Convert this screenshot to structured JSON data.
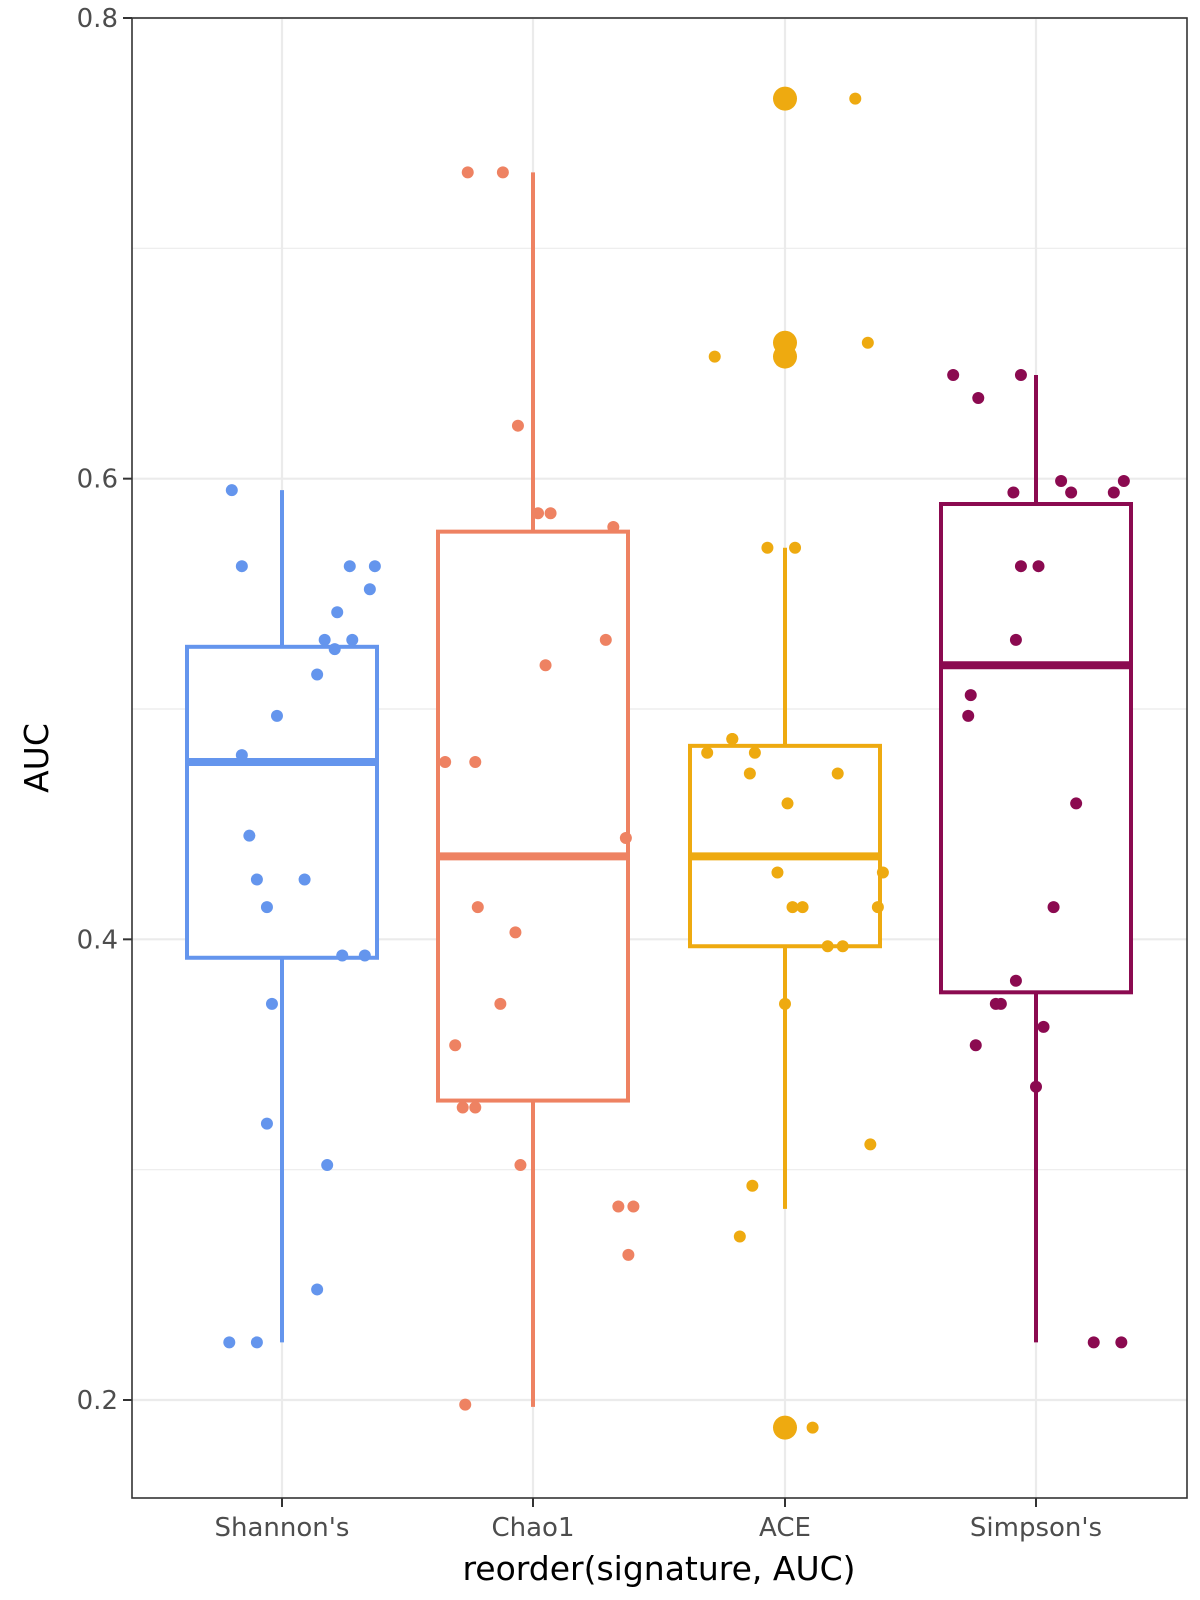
{
  "chart_data": {
    "type": "boxplot",
    "xlabel": "reorder(signature, AUC)",
    "ylabel": "AUC",
    "ylim": [
      0.155,
      0.8
    ],
    "yticks": [
      0.2,
      0.4,
      0.6,
      0.8
    ],
    "ytick_labels": [
      "0.2",
      "0.4",
      "0.6",
      "0.8"
    ],
    "grid": true,
    "categories": [
      "Shannon's",
      "Chao1",
      "ACE",
      "Simpson's"
    ],
    "colors": [
      "#6495ED",
      "#EE8262",
      "#EEAA10",
      "#8B0A50"
    ],
    "boxes": [
      {
        "name": "Shannon's",
        "whisker_low": 0.225,
        "q1": 0.392,
        "median": 0.477,
        "q3": 0.527,
        "whisker_high": 0.595,
        "outliers": []
      },
      {
        "name": "Chao1",
        "whisker_low": 0.197,
        "q1": 0.33,
        "median": 0.436,
        "q3": 0.577,
        "whisker_high": 0.733,
        "outliers": []
      },
      {
        "name": "ACE",
        "whisker_low": 0.283,
        "q1": 0.397,
        "median": 0.436,
        "q3": 0.484,
        "whisker_high": 0.57,
        "outliers": [
          0.765,
          0.659,
          0.653,
          0.188
        ]
      },
      {
        "name": "Simpson's",
        "whisker_low": 0.225,
        "q1": 0.377,
        "median": 0.519,
        "q3": 0.589,
        "whisker_high": 0.645,
        "outliers": []
      }
    ],
    "points": [
      [
        [
          -0.2,
          0.595
        ],
        [
          -0.16,
          0.562
        ],
        [
          0.27,
          0.562
        ],
        [
          0.37,
          0.562
        ],
        [
          0.35,
          0.552
        ],
        [
          0.22,
          0.542
        ],
        [
          0.17,
          0.53
        ],
        [
          0.28,
          0.53
        ],
        [
          0.21,
          0.526
        ],
        [
          0.14,
          0.515
        ],
        [
          -0.02,
          0.497
        ],
        [
          -0.16,
          0.48
        ],
        [
          -0.13,
          0.445
        ],
        [
          -0.1,
          0.426
        ],
        [
          0.09,
          0.426
        ],
        [
          -0.06,
          0.414
        ],
        [
          0.24,
          0.393
        ],
        [
          0.33,
          0.393
        ],
        [
          -0.04,
          0.372
        ],
        [
          -0.06,
          0.32
        ],
        [
          0.18,
          0.302
        ],
        [
          0.14,
          0.248
        ],
        [
          -0.21,
          0.225
        ],
        [
          -0.1,
          0.225
        ]
      ],
      [
        [
          -0.26,
          0.733
        ],
        [
          -0.12,
          0.733
        ],
        [
          -0.06,
          0.623
        ],
        [
          0.02,
          0.585
        ],
        [
          0.07,
          0.585
        ],
        [
          0.32,
          0.579
        ],
        [
          0.29,
          0.53
        ],
        [
          0.05,
          0.519
        ],
        [
          -0.35,
          0.477
        ],
        [
          -0.23,
          0.477
        ],
        [
          0.37,
          0.444
        ],
        [
          -0.22,
          0.414
        ],
        [
          -0.07,
          0.403
        ],
        [
          -0.13,
          0.372
        ],
        [
          -0.31,
          0.354
        ],
        [
          -0.28,
          0.327
        ],
        [
          -0.23,
          0.327
        ],
        [
          -0.05,
          0.302
        ],
        [
          0.34,
          0.284
        ],
        [
          0.4,
          0.284
        ],
        [
          0.38,
          0.263
        ],
        [
          -0.27,
          0.198
        ]
      ],
      [
        [
          0.28,
          0.765
        ],
        [
          0.33,
          0.659
        ],
        [
          -0.28,
          0.653
        ],
        [
          0.04,
          0.57
        ],
        [
          -0.07,
          0.57
        ],
        [
          -0.21,
          0.487
        ],
        [
          -0.21,
          0.487
        ],
        [
          -0.31,
          0.481
        ],
        [
          -0.12,
          0.481
        ],
        [
          -0.14,
          0.472
        ],
        [
          0.21,
          0.472
        ],
        [
          0.01,
          0.459
        ],
        [
          -0.03,
          0.429
        ],
        [
          0.39,
          0.429
        ],
        [
          0.03,
          0.414
        ],
        [
          0.07,
          0.414
        ],
        [
          0.37,
          0.414
        ],
        [
          0.17,
          0.397
        ],
        [
          0.23,
          0.397
        ],
        [
          0.0,
          0.372
        ],
        [
          0.34,
          0.311
        ],
        [
          -0.13,
          0.293
        ],
        [
          -0.18,
          0.271
        ],
        [
          0.11,
          0.188
        ]
      ],
      [
        [
          -0.33,
          0.645
        ],
        [
          -0.06,
          0.645
        ],
        [
          -0.23,
          0.635
        ],
        [
          0.1,
          0.599
        ],
        [
          0.35,
          0.599
        ],
        [
          -0.09,
          0.594
        ],
        [
          0.14,
          0.594
        ],
        [
          0.31,
          0.594
        ],
        [
          -0.06,
          0.562
        ],
        [
          0.01,
          0.562
        ],
        [
          -0.08,
          0.53
        ],
        [
          -0.26,
          0.506
        ],
        [
          -0.27,
          0.497
        ],
        [
          0.16,
          0.459
        ],
        [
          0.07,
          0.414
        ],
        [
          -0.08,
          0.382
        ],
        [
          -0.16,
          0.372
        ],
        [
          -0.14,
          0.372
        ],
        [
          0.03,
          0.362
        ],
        [
          -0.24,
          0.354
        ],
        [
          0.0,
          0.336
        ],
        [
          0.23,
          0.225
        ],
        [
          0.34,
          0.225
        ]
      ]
    ]
  }
}
